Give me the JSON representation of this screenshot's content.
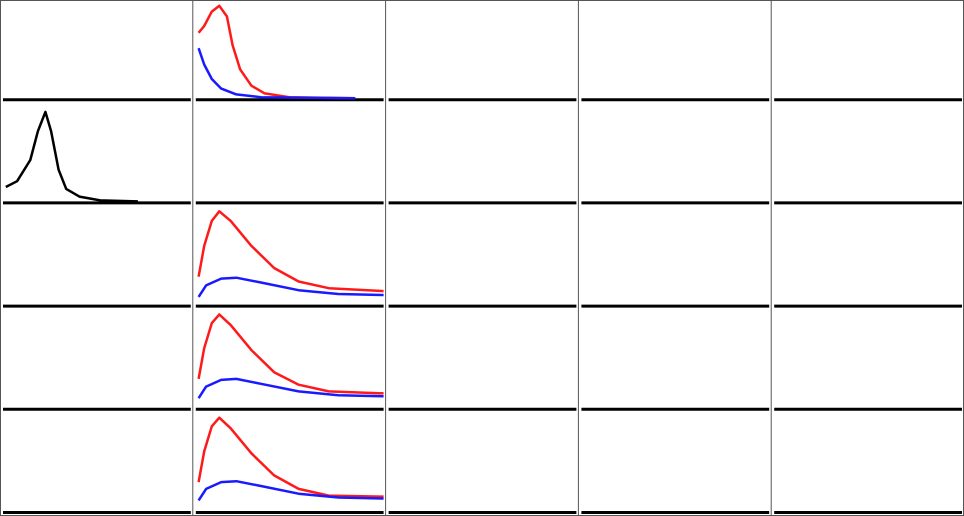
{
  "chart_data": [
    {
      "type": "line",
      "series": []
    },
    {
      "type": "line",
      "xlim": [
        0,
        1
      ],
      "ylim": [
        0,
        1
      ],
      "series": [
        {
          "color": "#ff1a1a",
          "x": [
            0.02,
            0.05,
            0.09,
            0.13,
            0.17,
            0.2,
            0.24,
            0.3,
            0.37,
            0.5,
            0.85
          ],
          "values": [
            0.68,
            0.75,
            0.9,
            0.96,
            0.85,
            0.55,
            0.3,
            0.13,
            0.05,
            0.01,
            0
          ]
        },
        {
          "color": "#1a1aff",
          "x": [
            0.02,
            0.05,
            0.09,
            0.14,
            0.22,
            0.35,
            0.85
          ],
          "values": [
            0.52,
            0.35,
            0.2,
            0.1,
            0.04,
            0.01,
            0
          ]
        }
      ]
    },
    {
      "type": "line",
      "series": []
    },
    {
      "type": "line",
      "series": []
    },
    {
      "type": "line",
      "series": []
    },
    {
      "type": "line",
      "xlim": [
        0,
        1
      ],
      "ylim": [
        0,
        1
      ],
      "series": [
        {
          "color": "#000000",
          "x": [
            0.02,
            0.08,
            0.15,
            0.19,
            0.23,
            0.26,
            0.3,
            0.34,
            0.41,
            0.52,
            0.72
          ],
          "values": [
            0.15,
            0.21,
            0.43,
            0.73,
            0.93,
            0.73,
            0.33,
            0.13,
            0.05,
            0.01,
            0
          ]
        }
      ]
    },
    {
      "type": "line",
      "series": []
    },
    {
      "type": "line",
      "series": []
    },
    {
      "type": "line",
      "series": []
    },
    {
      "type": "line",
      "series": []
    },
    {
      "type": "line",
      "series": []
    },
    {
      "type": "line",
      "xlim": [
        0,
        1
      ],
      "ylim": [
        0,
        1
      ],
      "series": [
        {
          "color": "#ff1a1a",
          "x": [
            0.02,
            0.05,
            0.09,
            0.13,
            0.19,
            0.3,
            0.42,
            0.55,
            0.71,
            1
          ],
          "values": [
            0.29,
            0.61,
            0.87,
            0.97,
            0.87,
            0.61,
            0.38,
            0.24,
            0.17,
            0.14
          ]
        },
        {
          "color": "#1a1aff",
          "x": [
            0.02,
            0.06,
            0.14,
            0.22,
            0.35,
            0.55,
            0.76,
            1
          ],
          "values": [
            0.08,
            0.2,
            0.27,
            0.28,
            0.23,
            0.15,
            0.11,
            0.1
          ]
        }
      ]
    },
    {
      "type": "line",
      "series": []
    },
    {
      "type": "line",
      "series": []
    },
    {
      "type": "line",
      "series": []
    },
    {
      "type": "line",
      "series": []
    },
    {
      "type": "line",
      "xlim": [
        0,
        1
      ],
      "ylim": [
        0,
        1
      ],
      "series": [
        {
          "color": "#ff1a1a",
          "x": [
            0.02,
            0.05,
            0.09,
            0.13,
            0.19,
            0.3,
            0.42,
            0.55,
            0.71,
            1
          ],
          "values": [
            0.3,
            0.62,
            0.88,
            0.97,
            0.86,
            0.6,
            0.37,
            0.24,
            0.17,
            0.15
          ]
        },
        {
          "color": "#1a1aff",
          "x": [
            0.02,
            0.06,
            0.14,
            0.22,
            0.35,
            0.55,
            0.76,
            1
          ],
          "values": [
            0.1,
            0.22,
            0.29,
            0.3,
            0.25,
            0.17,
            0.13,
            0.12
          ]
        }
      ]
    },
    {
      "type": "line",
      "series": []
    },
    {
      "type": "line",
      "series": []
    },
    {
      "type": "line",
      "series": []
    },
    {
      "type": "line",
      "series": []
    },
    {
      "type": "line",
      "xlim": [
        0,
        1
      ],
      "ylim": [
        0,
        1
      ],
      "series": [
        {
          "color": "#ff1a1a",
          "x": [
            0.02,
            0.05,
            0.09,
            0.13,
            0.19,
            0.3,
            0.42,
            0.55,
            0.71,
            1
          ],
          "values": [
            0.3,
            0.62,
            0.88,
            0.97,
            0.86,
            0.6,
            0.37,
            0.23,
            0.16,
            0.15
          ]
        },
        {
          "color": "#1a1aff",
          "x": [
            0.02,
            0.06,
            0.14,
            0.22,
            0.35,
            0.55,
            0.76,
            1
          ],
          "values": [
            0.11,
            0.23,
            0.3,
            0.31,
            0.26,
            0.18,
            0.14,
            0.13
          ]
        }
      ]
    },
    {
      "type": "line",
      "series": []
    },
    {
      "type": "line",
      "series": []
    },
    {
      "type": "line",
      "series": []
    }
  ]
}
